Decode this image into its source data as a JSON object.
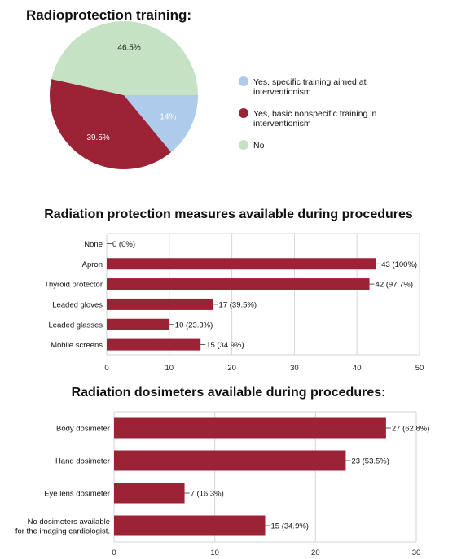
{
  "chart_data": [
    {
      "type": "pie",
      "title": "Radioprotection training:",
      "legend_position": "right",
      "slices": [
        {
          "label": "Yes, specific training aimed at interventionism",
          "value": 14,
          "display": "14%",
          "color": "#aecbeb"
        },
        {
          "label": "Yes, basic nonspecific training in interventionism",
          "value": 39.5,
          "display": "39.5%",
          "color": "#9c2236"
        },
        {
          "label": "No",
          "value": 46.5,
          "display": "46.5%",
          "color": "#c5e3c4"
        }
      ],
      "legend": [
        {
          "lines": [
            "Yes, specific training aimed at",
            "interventionism"
          ],
          "color": "#aecbeb"
        },
        {
          "lines": [
            "Yes, basic nonspecific training in",
            "interventionism"
          ],
          "color": "#9c2236"
        },
        {
          "lines": [
            "No"
          ],
          "color": "#c5e3c4"
        }
      ]
    },
    {
      "type": "bar",
      "orientation": "horizontal",
      "title": "Radiation protection measures available during procedures",
      "bar_color": "#9c2236",
      "grid": true,
      "xlim": [
        0,
        50
      ],
      "xticks": [
        0,
        10,
        20,
        30,
        40,
        50
      ],
      "categories": [
        [
          "None"
        ],
        [
          "Apron"
        ],
        [
          "Thyroid protector"
        ],
        [
          "Leaded gloves"
        ],
        [
          "Leaded glasses"
        ],
        [
          "Mobile screens"
        ]
      ],
      "values": [
        0,
        43,
        42,
        17,
        10,
        15
      ],
      "data_labels": [
        "0 (0%)",
        "43 (100%)",
        "42 (97.7%)",
        "17 (39.5%)",
        "10 (23.3%)",
        "15 (34.9%)"
      ]
    },
    {
      "type": "bar",
      "orientation": "horizontal",
      "title": "Radiation dosimeters available during procedures:",
      "bar_color": "#9c2236",
      "grid": true,
      "xlim": [
        0,
        30
      ],
      "xticks": [
        0,
        10,
        20,
        30
      ],
      "categories": [
        [
          "Body dosimeter"
        ],
        [
          "Hand dosimeter"
        ],
        [
          "Eye lens dosimeter"
        ],
        [
          "No dosimeters available",
          "for the imaging cardiologist."
        ]
      ],
      "values": [
        27,
        23,
        7,
        15
      ],
      "data_labels": [
        "27 (62.8%)",
        "23 (53.5%)",
        "7 (16.3%)",
        "15 (34.9%)"
      ]
    }
  ]
}
